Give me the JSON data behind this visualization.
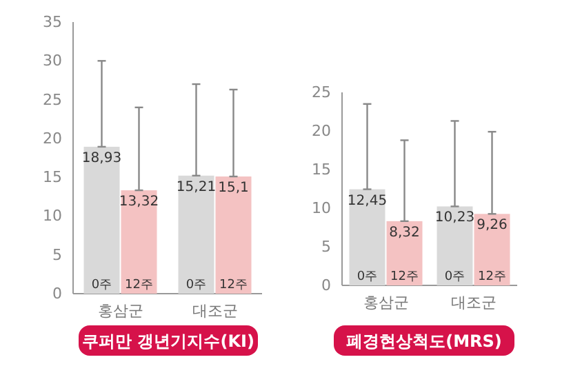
{
  "chart_data": [
    {
      "type": "bar",
      "title": "쿠퍼만 갱년기지수(KI)",
      "categories": [
        "홍삼군",
        "대조군"
      ],
      "ylim": [
        0,
        35
      ],
      "yticks": [
        0,
        5,
        10,
        15,
        20,
        25,
        30,
        35
      ],
      "series": [
        {
          "name": "0주",
          "color": "#d9d9d9",
          "values": [
            18.93,
            15.21
          ],
          "value_labels": [
            "18,93",
            "15,21"
          ],
          "errors": [
            [
              18.93,
              30
            ],
            [
              15.21,
              27
            ]
          ]
        },
        {
          "name": "12주",
          "color": "#f4c2c2",
          "values": [
            13.32,
            15.1
          ],
          "value_labels": [
            "13,32",
            "15,1"
          ],
          "errors": [
            [
              13.32,
              24
            ],
            [
              15.1,
              26.3
            ]
          ]
        }
      ]
    },
    {
      "type": "bar",
      "title": "폐경현상척도(MRS)",
      "categories": [
        "홍삼군",
        "대조군"
      ],
      "ylim": [
        0,
        25
      ],
      "yticks": [
        0,
        5,
        10,
        15,
        20,
        25
      ],
      "series": [
        {
          "name": "0주",
          "color": "#d9d9d9",
          "values": [
            12.45,
            10.23
          ],
          "value_labels": [
            "12,45",
            "10,23"
          ],
          "errors": [
            [
              12.45,
              23.5
            ],
            [
              10.23,
              21.3
            ]
          ]
        },
        {
          "name": "12주",
          "color": "#f4c2c2",
          "values": [
            8.32,
            9.26
          ],
          "value_labels": [
            "8,32",
            "9,26"
          ],
          "errors": [
            [
              8.32,
              18.8
            ],
            [
              9.26,
              19.9
            ]
          ]
        }
      ]
    }
  ]
}
